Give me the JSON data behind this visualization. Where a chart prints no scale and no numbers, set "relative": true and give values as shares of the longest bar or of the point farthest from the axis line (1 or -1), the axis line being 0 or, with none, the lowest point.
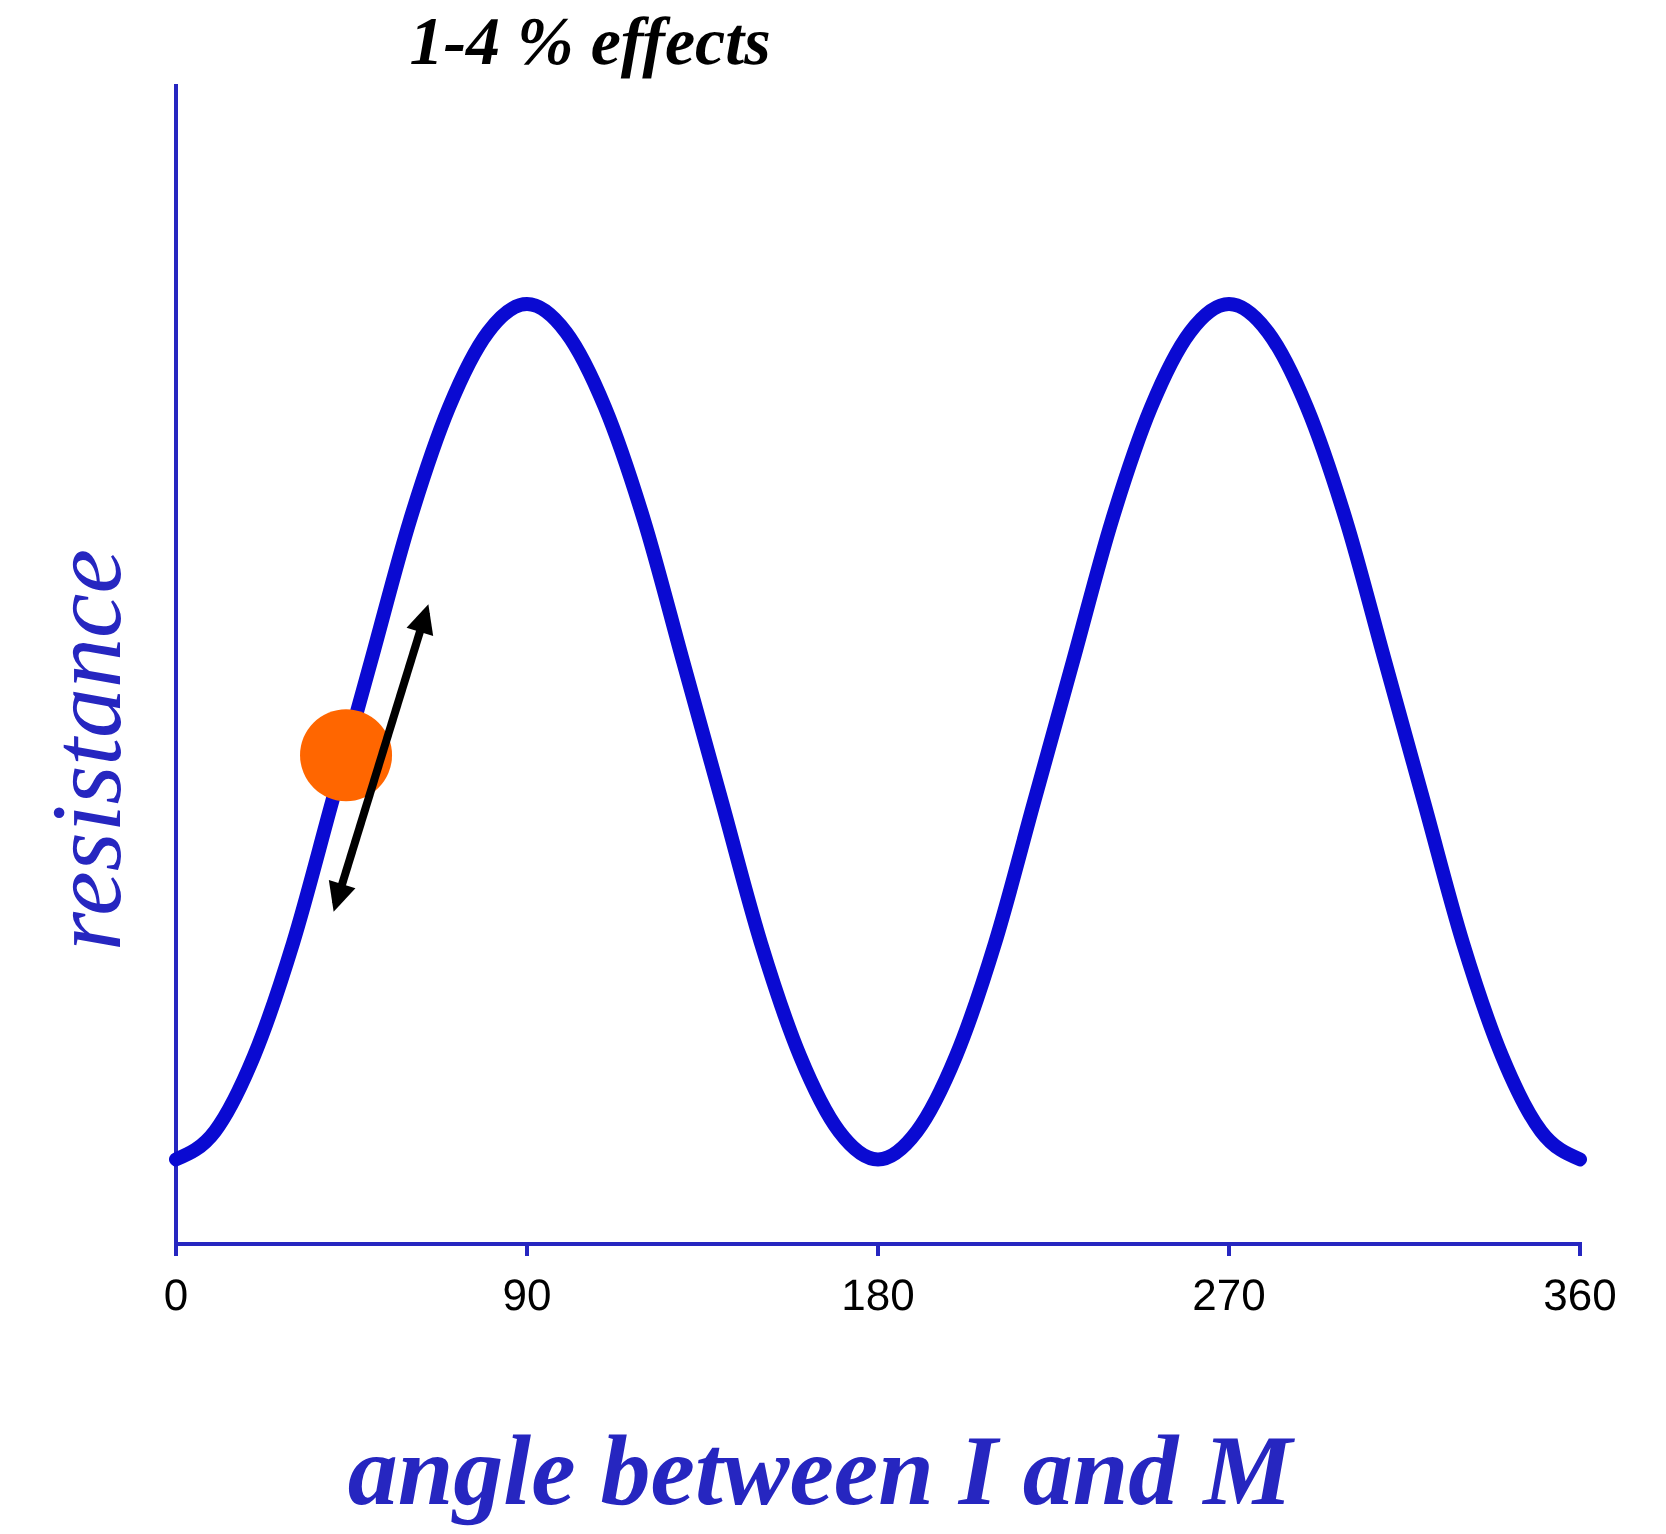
{
  "chart_data": {
    "type": "line",
    "title": "1-4 % effects",
    "xlabel": "angle between I and M",
    "ylabel": "resistance",
    "relative": true,
    "xlim": [
      0,
      360
    ],
    "xticks": [
      0,
      90,
      180,
      270,
      360
    ],
    "grid": false,
    "series": [
      {
        "color": "#0a0ad2",
        "x": [
          0,
          10,
          20,
          30,
          40,
          50,
          60,
          70,
          80,
          90,
          100,
          110,
          120,
          130,
          140,
          150,
          160,
          170,
          180,
          190,
          200,
          210,
          220,
          230,
          240,
          250,
          260,
          270,
          280,
          290,
          300,
          310,
          320,
          330,
          340,
          350,
          360
        ],
        "values": [
          0.09,
          0.12,
          0.2,
          0.32,
          0.47,
          0.62,
          0.77,
          0.89,
          0.97,
          1,
          0.97,
          0.89,
          0.77,
          0.62,
          0.47,
          0.32,
          0.2,
          0.12,
          0.09,
          0.12,
          0.2,
          0.32,
          0.47,
          0.62,
          0.77,
          0.89,
          0.97,
          1,
          0.97,
          0.89,
          0.77,
          0.62,
          0.47,
          0.32,
          0.2,
          0.12,
          0.09
        ]
      },
      {
        "type": "scatter",
        "color": "#ff6600",
        "x": [
          43.6
        ],
        "values": [
          0.52
        ]
      }
    ]
  }
}
